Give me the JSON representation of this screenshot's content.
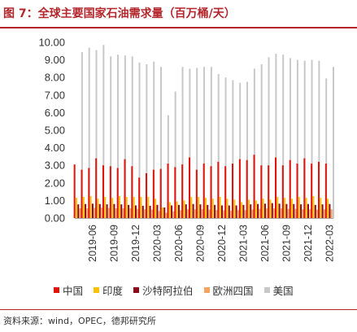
{
  "header": {
    "title": "图 7：全球主要国家石油需求量（百万桶/天）",
    "source": "资料来源：wind，OPEC，德邦研究所"
  },
  "chart_data": {
    "type": "bar",
    "title": "图 7：全球主要国家石油需求量（百万桶/天）",
    "ylim": [
      0,
      10
    ],
    "yticks": [
      "0.00",
      "1.00",
      "2.00",
      "3.00",
      "4.00",
      "5.00",
      "6.00",
      "7.00",
      "8.00",
      "9.00",
      "10.00"
    ],
    "x_tick_labels": [
      "2019-06",
      "2019-09",
      "2019-12",
      "2020-03",
      "2020-06",
      "2020-09",
      "2020-12",
      "2021-03",
      "2021-06",
      "2021-09",
      "2021-12",
      "2022-03"
    ],
    "categories": [
      "2019-04",
      "2019-05",
      "2019-06",
      "2019-07",
      "2019-08",
      "2019-09",
      "2019-10",
      "2019-11",
      "2019-12",
      "2020-01",
      "2020-02",
      "2020-03",
      "2020-04",
      "2020-05",
      "2020-06",
      "2020-07",
      "2020-08",
      "2020-09",
      "2020-10",
      "2020-11",
      "2020-12",
      "2021-01",
      "2021-02",
      "2021-03",
      "2021-04",
      "2021-05",
      "2021-06",
      "2021-07",
      "2021-08",
      "2021-09",
      "2021-10",
      "2021-11",
      "2021-12",
      "2022-01",
      "2022-02",
      "2022-03"
    ],
    "grid": false,
    "legend_position": "bottom",
    "series": [
      {
        "name": "中国",
        "color": "#e3120b",
        "values": [
          3.05,
          2.75,
          2.85,
          3.4,
          3.0,
          2.95,
          2.85,
          3.35,
          2.95,
          2.3,
          2.55,
          2.75,
          2.8,
          3.1,
          2.9,
          3.05,
          3.45,
          2.75,
          3.1,
          2.95,
          3.2,
          2.95,
          3.1,
          3.35,
          3.3,
          3.6,
          3.0,
          3.0,
          3.45,
          3.0,
          3.3,
          3.1,
          3.4,
          3.1,
          3.2,
          3.1
        ]
      },
      {
        "name": "印度",
        "color": "#ffc000",
        "values": [
          1.15,
          1.2,
          1.25,
          1.1,
          1.2,
          1.15,
          1.25,
          1.2,
          1.2,
          1.2,
          1.2,
          1.1,
          0.6,
          0.9,
          0.95,
          1.0,
          1.2,
          1.2,
          1.15,
          1.1,
          1.2,
          1.1,
          1.05,
          0.9,
          1.05,
          1.0,
          1.1,
          1.05,
          1.2,
          1.15,
          1.1,
          1.2,
          1.15,
          1.25,
          1.15,
          1.1
        ]
      },
      {
        "name": "沙特阿拉伯",
        "color": "#8b0a1a",
        "values": [
          0.78,
          0.8,
          0.82,
          0.8,
          0.78,
          0.8,
          0.78,
          0.75,
          0.72,
          0.7,
          0.7,
          0.75,
          0.6,
          0.72,
          0.75,
          0.78,
          0.8,
          0.78,
          0.75,
          0.75,
          0.72,
          0.72,
          0.72,
          0.75,
          0.78,
          0.8,
          0.82,
          0.85,
          0.82,
          0.8,
          0.8,
          0.78,
          0.8,
          0.75,
          0.78,
          0.8
        ]
      },
      {
        "name": "欧洲四国",
        "color": "#f4a460",
        "values": [
          0.55,
          0.55,
          0.58,
          0.6,
          0.58,
          0.55,
          0.55,
          0.55,
          0.52,
          0.5,
          0.48,
          0.4,
          0.3,
          0.38,
          0.45,
          0.5,
          0.5,
          0.5,
          0.48,
          0.45,
          0.45,
          0.42,
          0.45,
          0.45,
          0.48,
          0.52,
          0.55,
          0.55,
          0.55,
          0.52,
          0.52,
          0.5,
          0.5,
          0.48,
          0.5,
          0.5
        ]
      },
      {
        "name": "美国",
        "color": "#c8c8c8",
        "values": [
          9.45,
          9.7,
          9.55,
          9.85,
          9.2,
          9.3,
          9.25,
          9.2,
          8.85,
          8.75,
          8.9,
          8.6,
          5.85,
          7.2,
          8.6,
          8.5,
          8.55,
          8.6,
          8.6,
          8.2,
          8.0,
          7.85,
          7.7,
          7.75,
          8.5,
          8.75,
          9.15,
          9.35,
          9.3,
          9.1,
          9.0,
          8.95,
          9.0,
          8.95,
          7.95,
          8.6
        ]
      }
    ]
  }
}
